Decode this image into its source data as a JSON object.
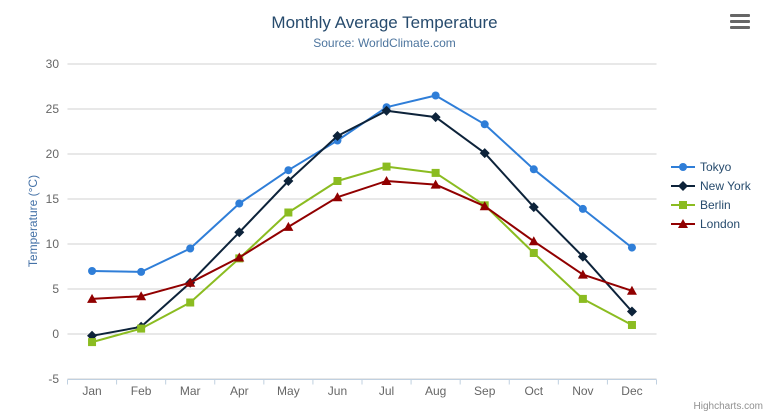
{
  "chart_data": {
    "type": "line",
    "title": "Monthly Average Temperature",
    "subtitle": "Source: WorldClimate.com",
    "xlabel": "",
    "ylabel": "Temperature (°C)",
    "categories": [
      "Jan",
      "Feb",
      "Mar",
      "Apr",
      "May",
      "Jun",
      "Jul",
      "Aug",
      "Sep",
      "Oct",
      "Nov",
      "Dec"
    ],
    "series": [
      {
        "name": "Tokyo",
        "color": "#2f7ed8",
        "marker": "circle",
        "values": [
          7.0,
          6.9,
          9.5,
          14.5,
          18.2,
          21.5,
          25.2,
          26.5,
          23.3,
          18.3,
          13.9,
          9.6
        ]
      },
      {
        "name": "New York",
        "color": "#0d233a",
        "marker": "diamond",
        "values": [
          -0.2,
          0.8,
          5.7,
          11.3,
          17.0,
          22.0,
          24.8,
          24.1,
          20.1,
          14.1,
          8.6,
          2.5
        ]
      },
      {
        "name": "Berlin",
        "color": "#8bbc21",
        "marker": "square",
        "values": [
          -0.9,
          0.6,
          3.5,
          8.4,
          13.5,
          17.0,
          18.6,
          17.9,
          14.3,
          9.0,
          3.9,
          1.0
        ]
      },
      {
        "name": "London",
        "color": "#910000",
        "marker": "triangle",
        "values": [
          3.9,
          4.2,
          5.7,
          8.5,
          11.9,
          15.2,
          17.0,
          16.6,
          14.2,
          10.3,
          6.6,
          4.8
        ]
      }
    ],
    "ylim": [
      -5,
      30
    ],
    "y_tick_interval": 5,
    "grid": true,
    "legend_position": "right"
  },
  "credits": "Highcharts.com",
  "icons": {
    "context_menu": "hamburger-icon"
  },
  "colors": {
    "title": "#274b6d",
    "subtitle": "#4d759e",
    "axis_labels": "#666666",
    "y_axis_title": "#4572a7",
    "gridline": "#d0d0d0",
    "axis_line": "#c0d0e0",
    "legend_text": "#274b6d",
    "credits": "#909090",
    "menu_icon": "#666666",
    "background": "#ffffff"
  }
}
